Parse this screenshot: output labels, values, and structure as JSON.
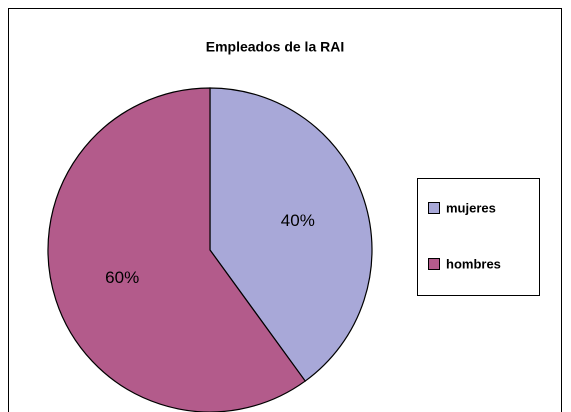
{
  "chart_data": {
    "type": "pie",
    "title": "Empleados de la RAI",
    "categories": [
      "mujeres",
      "hombres"
    ],
    "values": [
      40,
      60
    ],
    "value_labels": [
      "40%",
      "60%"
    ],
    "colors": [
      "#a8a8d8",
      "#b35b8b"
    ],
    "legend": "right"
  }
}
